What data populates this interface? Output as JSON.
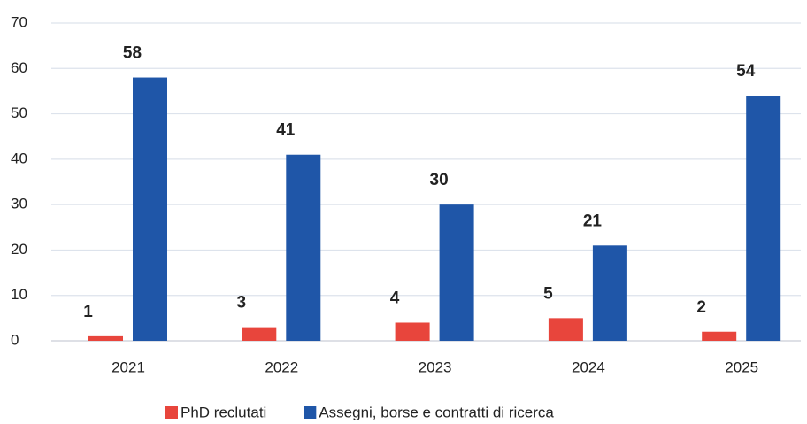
{
  "chart_data": {
    "type": "bar",
    "categories": [
      "2021",
      "2022",
      "2023",
      "2024",
      "2025"
    ],
    "series": [
      {
        "name": "PhD reclutati",
        "color": "#e8453c",
        "values": [
          1,
          3,
          4,
          5,
          2
        ]
      },
      {
        "name": "Assegni, borse e contratti di ricerca",
        "color": "#1f56a8",
        "values": [
          58,
          41,
          30,
          21,
          54
        ]
      }
    ],
    "ylim": [
      0,
      70
    ],
    "yticks": [
      0,
      10,
      20,
      30,
      40,
      50,
      60,
      70
    ],
    "grid": true,
    "legend": "bottom"
  }
}
